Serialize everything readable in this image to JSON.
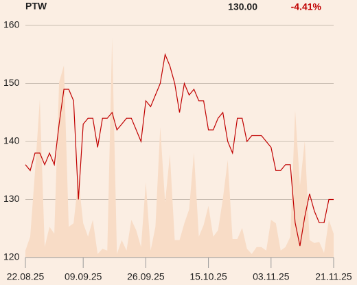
{
  "chart_data": {
    "type": "line",
    "ticker": "PTW",
    "last_price": "130.00",
    "change": "-4.41%",
    "categories": [
      "22.08.25",
      null,
      null,
      null,
      null,
      null,
      null,
      null,
      null,
      null,
      null,
      null,
      "09.09.25",
      null,
      null,
      null,
      null,
      null,
      null,
      null,
      null,
      null,
      null,
      null,
      null,
      "26.09.25",
      null,
      null,
      null,
      null,
      null,
      null,
      null,
      null,
      null,
      null,
      null,
      null,
      "15.10.25",
      null,
      null,
      null,
      null,
      null,
      null,
      null,
      null,
      null,
      null,
      null,
      null,
      "03.11.25",
      null,
      null,
      null,
      null,
      null,
      null,
      null,
      null,
      null,
      null,
      null,
      null,
      "21.11.25"
    ],
    "series": [
      {
        "color": "#f8dcc6",
        "kind": "area",
        "values": [
          121.2,
          123.6,
          134.8,
          147.2,
          121.8,
          125.3,
          124.1,
          150.2,
          153.1,
          125.3,
          125.9,
          133.6,
          125.9,
          123.6,
          126.5,
          120.6,
          121.5,
          121.2,
          157.9,
          120.6,
          123.0,
          121.2,
          126.5,
          124.7,
          121.8,
          133.0,
          121.2,
          125.3,
          142.5,
          129.5,
          137.8,
          123.0,
          123.0,
          125.9,
          128.3,
          138.1,
          123.6,
          125.6,
          128.9,
          123.6,
          124.7,
          130.1,
          136.8,
          123.2,
          123.2,
          125.1,
          121.5,
          120.6,
          121.8,
          121.8,
          121.2,
          126.5,
          125.9,
          121.2,
          121.8,
          123.6,
          145.4,
          132.4,
          140.1,
          123.0,
          122.5,
          122.7,
          120.8,
          126.5,
          124.1
        ]
      },
      {
        "color": "#c00000",
        "kind": "line",
        "values": [
          136,
          135,
          138,
          138,
          136,
          138,
          136,
          143,
          149,
          149,
          147,
          130,
          143,
          144,
          144,
          139,
          144,
          144,
          145,
          142,
          143,
          144,
          144,
          142,
          140,
          147,
          146,
          148,
          150,
          155,
          153,
          150,
          145,
          150,
          148,
          149,
          147,
          147,
          142,
          142,
          144,
          145,
          140,
          138,
          144,
          144,
          140,
          141,
          141,
          141,
          140,
          139,
          135,
          135,
          136,
          136,
          126,
          122,
          127,
          131,
          128,
          126,
          126,
          130,
          130
        ]
      }
    ],
    "ylim": [
      120,
      160
    ],
    "yticks": [
      120,
      130,
      140,
      150,
      160
    ],
    "grid": true
  }
}
